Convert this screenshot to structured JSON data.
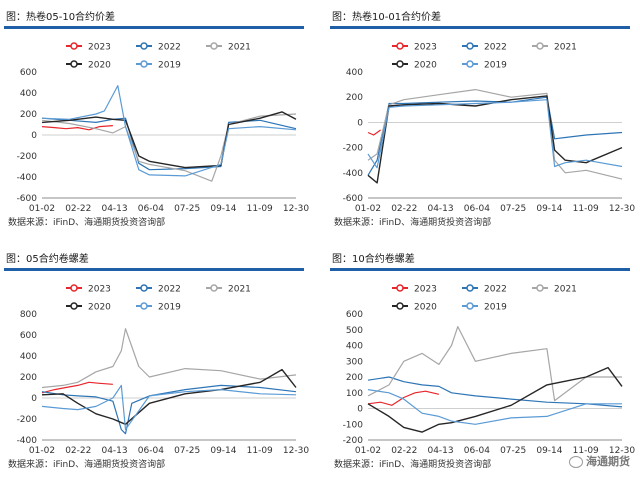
{
  "watermark": {
    "text": "海通期货",
    "icon": "wechat-icon"
  },
  "legend_entries": [
    {
      "name": "2023",
      "color": "#e8262b"
    },
    {
      "name": "2022",
      "color": "#2e75b6"
    },
    {
      "name": "2021",
      "color": "#a6a6a6"
    },
    {
      "name": "2020",
      "color": "#262626"
    },
    {
      "name": "2019",
      "color": "#5b9bd5"
    }
  ],
  "chart_data": [
    {
      "type": "line",
      "title": "图：热卷05-10合约价差",
      "source": "数据来源：iFinD、海通期货投资咨询部",
      "x_ticks": [
        "01-02",
        "02-22",
        "04-13",
        "06-04",
        "07-25",
        "09-14",
        "11-09",
        "12-30"
      ],
      "y_ticks": [
        600,
        400,
        200,
        0,
        -200,
        -400,
        -600
      ],
      "ylim": [
        -600,
        600
      ],
      "series": [
        {
          "name": "2023",
          "x": [
            "01-02",
            "01-20",
            "02-05",
            "02-22",
            "03-10",
            "03-25",
            "04-13"
          ],
          "values": [
            80,
            70,
            60,
            70,
            50,
            80,
            90
          ]
        },
        {
          "name": "2022",
          "x": [
            "01-02",
            "02-10",
            "03-20",
            "04-13",
            "05-01",
            "05-20",
            "06-04",
            "07-25",
            "09-14",
            "09-25",
            "11-09",
            "12-30"
          ],
          "values": [
            160,
            140,
            120,
            150,
            160,
            -270,
            -330,
            -320,
            -300,
            120,
            140,
            60
          ]
        },
        {
          "name": "2021",
          "x": [
            "01-02",
            "02-10",
            "03-20",
            "04-13",
            "05-01",
            "05-20",
            "06-04",
            "07-25",
            "09-01",
            "09-14",
            "09-25",
            "11-09",
            "12-30"
          ],
          "values": [
            140,
            110,
            60,
            20,
            80,
            -250,
            -280,
            -340,
            -440,
            -200,
            100,
            180,
            200
          ]
        },
        {
          "name": "2020",
          "x": [
            "01-02",
            "02-10",
            "03-20",
            "04-13",
            "05-01",
            "05-20",
            "06-04",
            "07-25",
            "09-14",
            "09-25",
            "11-09",
            "12-10",
            "12-30"
          ],
          "values": [
            120,
            140,
            170,
            150,
            140,
            -200,
            -250,
            -310,
            -290,
            100,
            160,
            220,
            150
          ]
        },
        {
          "name": "2019",
          "x": [
            "01-02",
            "02-10",
            "03-20",
            "04-01",
            "04-20",
            "05-01",
            "05-20",
            "06-04",
            "07-25",
            "09-14",
            "09-25",
            "11-09",
            "12-30"
          ],
          "values": [
            160,
            150,
            200,
            230,
            470,
            80,
            -330,
            -380,
            -390,
            -280,
            60,
            80,
            50
          ]
        }
      ]
    },
    {
      "type": "line",
      "title": "图：热卷10-01合约价差",
      "source": "数据来源：iFinD、海通期货投资咨询部",
      "x_ticks": [
        "01-02",
        "02-22",
        "04-13",
        "06-04",
        "07-25",
        "09-14",
        "11-09",
        "12-30"
      ],
      "y_ticks": [
        400,
        200,
        0,
        -200,
        -400,
        -600
      ],
      "ylim": [
        -600,
        400
      ],
      "series": [
        {
          "name": "2023",
          "x": [
            "01-02",
            "01-10",
            "01-20"
          ],
          "values": [
            -80,
            -100,
            -60
          ]
        },
        {
          "name": "2022",
          "x": [
            "01-02",
            "01-15",
            "02-01",
            "02-22",
            "04-13",
            "06-04",
            "07-25",
            "09-14",
            "09-25",
            "10-10",
            "11-09",
            "12-30"
          ],
          "values": [
            -420,
            -300,
            150,
            150,
            160,
            170,
            160,
            200,
            -130,
            -120,
            -100,
            -80
          ]
        },
        {
          "name": "2021",
          "x": [
            "01-02",
            "01-15",
            "02-01",
            "02-22",
            "04-13",
            "06-04",
            "07-25",
            "09-14",
            "09-25",
            "10-10",
            "11-09",
            "12-30"
          ],
          "values": [
            -300,
            -250,
            140,
            180,
            220,
            260,
            200,
            230,
            -300,
            -400,
            -380,
            -450
          ]
        },
        {
          "name": "2020",
          "x": [
            "01-02",
            "01-15",
            "02-01",
            "02-22",
            "04-13",
            "06-04",
            "07-25",
            "09-14",
            "09-25",
            "10-10",
            "11-09",
            "12-30"
          ],
          "values": [
            -420,
            -480,
            130,
            140,
            150,
            130,
            180,
            210,
            -220,
            -300,
            -320,
            -200
          ]
        },
        {
          "name": "2019",
          "x": [
            "01-02",
            "01-15",
            "02-01",
            "02-22",
            "04-13",
            "06-04",
            "07-25",
            "09-14",
            "09-25",
            "10-10",
            "11-09",
            "12-30"
          ],
          "values": [
            -250,
            -360,
            120,
            130,
            140,
            150,
            160,
            180,
            -350,
            -320,
            -300,
            -350
          ]
        }
      ]
    },
    {
      "type": "line",
      "title": "图：05合约卷螺差",
      "source": "数据来源：iFinD、海通期货投资咨询部",
      "x_ticks": [
        "01-02",
        "02-22",
        "04-13",
        "06-04",
        "07-25",
        "09-14",
        "11-09",
        "12-30"
      ],
      "y_ticks": [
        800,
        600,
        400,
        200,
        0,
        -200,
        -400
      ],
      "ylim": [
        -400,
        800
      ],
      "series": [
        {
          "name": "2023",
          "x": [
            "01-02",
            "01-20",
            "02-05",
            "02-22",
            "03-10",
            "03-25",
            "04-13"
          ],
          "values": [
            50,
            80,
            100,
            120,
            150,
            140,
            130
          ]
        },
        {
          "name": "2022",
          "x": [
            "01-02",
            "02-01",
            "02-22",
            "03-20",
            "04-13",
            "04-25",
            "05-01",
            "05-10",
            "06-04",
            "07-25",
            "09-14",
            "11-09",
            "12-30"
          ],
          "values": [
            60,
            30,
            20,
            10,
            -30,
            -300,
            -340,
            -50,
            20,
            80,
            120,
            100,
            60
          ]
        },
        {
          "name": "2021",
          "x": [
            "01-02",
            "02-01",
            "02-22",
            "03-20",
            "04-13",
            "04-25",
            "05-01",
            "05-20",
            "06-04",
            "07-25",
            "09-14",
            "11-09",
            "12-30"
          ],
          "values": [
            100,
            120,
            150,
            250,
            300,
            450,
            660,
            300,
            200,
            280,
            260,
            180,
            220
          ]
        },
        {
          "name": "2020",
          "x": [
            "01-02",
            "02-01",
            "02-22",
            "03-20",
            "04-13",
            "05-01",
            "06-04",
            "07-25",
            "09-14",
            "11-09",
            "12-10",
            "12-30"
          ],
          "values": [
            30,
            40,
            -50,
            -150,
            -200,
            -250,
            -50,
            40,
            80,
            150,
            270,
            100
          ]
        },
        {
          "name": "2019",
          "x": [
            "01-02",
            "02-01",
            "02-22",
            "03-20",
            "04-13",
            "04-25",
            "05-01",
            "06-04",
            "07-25",
            "09-14",
            "11-09",
            "12-30"
          ],
          "values": [
            -80,
            -100,
            -110,
            -80,
            0,
            120,
            -300,
            20,
            60,
            80,
            40,
            30
          ]
        }
      ]
    },
    {
      "type": "line",
      "title": "图：10合约卷螺差",
      "source": "数据来源：iFinD、海通期货投资咨询部",
      "x_ticks": [
        "01-02",
        "02-22",
        "04-13",
        "06-04",
        "07-25",
        "09-14",
        "11-09",
        "12-30"
      ],
      "y_ticks": [
        600,
        500,
        400,
        300,
        200,
        100,
        0,
        -100,
        -200
      ],
      "ylim": [
        -200,
        600
      ],
      "series": [
        {
          "name": "2023",
          "x": [
            "01-02",
            "01-20",
            "02-05",
            "02-22",
            "03-10",
            "03-25",
            "04-13"
          ],
          "values": [
            30,
            40,
            20,
            70,
            100,
            110,
            90
          ]
        },
        {
          "name": "2022",
          "x": [
            "01-02",
            "02-01",
            "02-22",
            "03-20",
            "04-13",
            "05-01",
            "06-04",
            "07-25",
            "09-14",
            "11-09",
            "12-30"
          ],
          "values": [
            180,
            200,
            170,
            150,
            140,
            100,
            80,
            60,
            40,
            30,
            10
          ]
        },
        {
          "name": "2021",
          "x": [
            "01-02",
            "02-01",
            "02-22",
            "03-20",
            "04-13",
            "05-01",
            "05-10",
            "06-04",
            "07-25",
            "09-14",
            "09-25",
            "11-09",
            "12-30"
          ],
          "values": [
            80,
            150,
            300,
            350,
            280,
            400,
            520,
            300,
            350,
            380,
            50,
            200,
            200
          ]
        },
        {
          "name": "2020",
          "x": [
            "01-02",
            "02-01",
            "02-22",
            "03-20",
            "04-13",
            "05-01",
            "06-04",
            "07-25",
            "09-14",
            "11-09",
            "12-10",
            "12-30"
          ],
          "values": [
            30,
            -50,
            -120,
            -150,
            -100,
            -90,
            -50,
            20,
            150,
            200,
            260,
            140
          ]
        },
        {
          "name": "2019",
          "x": [
            "01-02",
            "02-01",
            "02-22",
            "03-20",
            "04-13",
            "05-01",
            "06-04",
            "07-25",
            "09-14",
            "11-09",
            "12-30"
          ],
          "values": [
            120,
            100,
            60,
            -30,
            -50,
            -80,
            -100,
            -60,
            -50,
            30,
            30
          ]
        }
      ]
    }
  ]
}
